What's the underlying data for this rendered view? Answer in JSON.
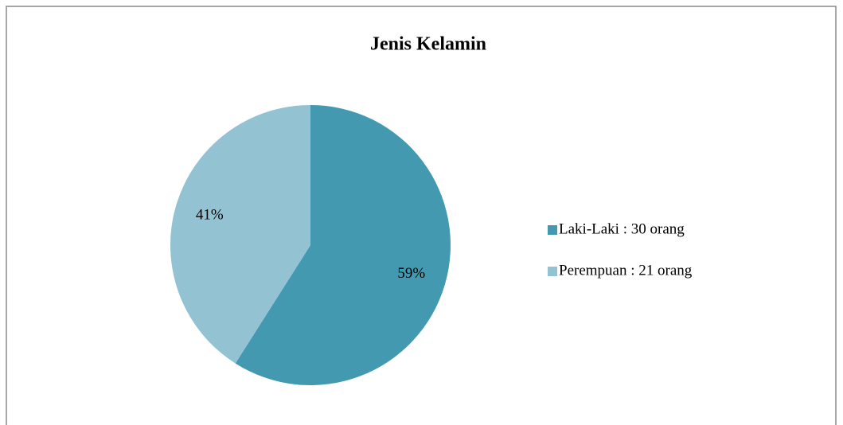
{
  "chart_data": {
    "type": "pie",
    "title": "Jenis Kelamin",
    "categories": [
      "Laki-Laki : 30 orang",
      "Perempuan : 21 orang"
    ],
    "values": [
      59,
      41
    ],
    "value_labels": [
      "59%",
      "41%"
    ],
    "colors": [
      "#4399b0",
      "#93c3d3"
    ],
    "legend": "right"
  }
}
